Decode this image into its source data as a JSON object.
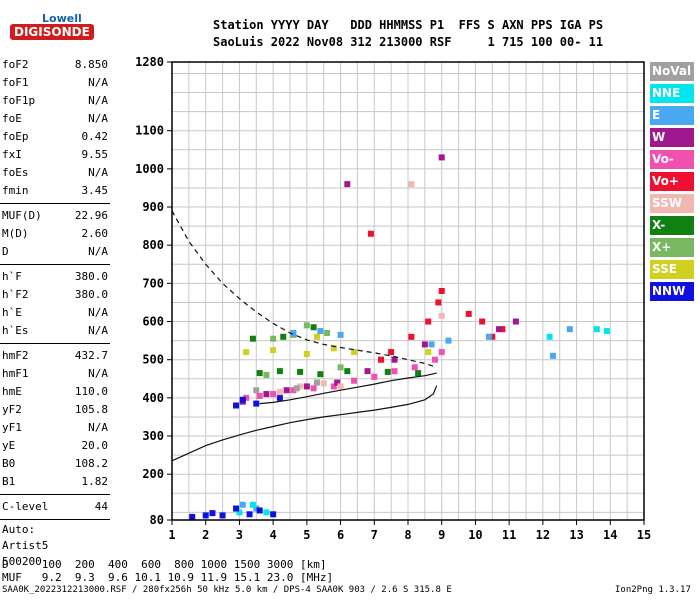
{
  "logo": {
    "top": "Lowell",
    "bottom": "DIGISONDE"
  },
  "header": {
    "line1": "Station YYYY DAY   DDD HHMMSS P1  FFS S AXN PPS IGA PS",
    "line2": "SaoLuis 2022 Nov08 312 213000 RSF     1 715 100 00- 11"
  },
  "params_a": [
    {
      "label": "foF2",
      "value": "8.850"
    },
    {
      "label": "foF1",
      "value": "N/A"
    },
    {
      "label": "foF1p",
      "value": "N/A"
    },
    {
      "label": "foE",
      "value": "N/A"
    },
    {
      "label": "foEp",
      "value": "0.42"
    },
    {
      "label": "fxI",
      "value": "9.55"
    },
    {
      "label": "foEs",
      "value": "N/A"
    },
    {
      "label": "fmin",
      "value": "3.45"
    }
  ],
  "params_b": [
    {
      "label": "MUF(D)",
      "value": "22.96"
    },
    {
      "label": "M(D)",
      "value": "2.60"
    },
    {
      "label": "D",
      "value": "N/A"
    }
  ],
  "params_c": [
    {
      "label": "h`F",
      "value": "380.0"
    },
    {
      "label": "h`F2",
      "value": "380.0"
    },
    {
      "label": "h`E",
      "value": "N/A"
    },
    {
      "label": "h`Es",
      "value": "N/A"
    }
  ],
  "params_d": [
    {
      "label": "hmF2",
      "value": "432.7"
    },
    {
      "label": "hmF1",
      "value": "N/A"
    },
    {
      "label": "hmE",
      "value": "110.0"
    },
    {
      "label": "yF2",
      "value": "105.8"
    },
    {
      "label": "yF1",
      "value": "N/A"
    },
    {
      "label": "yE",
      "value": "20.0"
    },
    {
      "label": "B0",
      "value": "108.2"
    },
    {
      "label": "B1",
      "value": "1.82"
    }
  ],
  "clevel": {
    "label": "C-level",
    "value": "44"
  },
  "auto": {
    "line1": "Auto:",
    "line2": "Artist5",
    "line3": "500200"
  },
  "legend": [
    {
      "label": "NoVal",
      "color": "#a0a0a0"
    },
    {
      "label": "NNE",
      "color": "#00e5ee"
    },
    {
      "label": "E",
      "color": "#4aa8f0"
    },
    {
      "label": "W",
      "color": "#a01890"
    },
    {
      "label": "Vo-",
      "color": "#f050b0"
    },
    {
      "label": "Vo+",
      "color": "#ee1030"
    },
    {
      "label": "SSW",
      "color": "#f0b8b0"
    },
    {
      "label": "X-",
      "color": "#108010"
    },
    {
      "label": "X+",
      "color": "#78b860"
    },
    {
      "label": "SSE",
      "color": "#d0d020"
    },
    {
      "label": "NNW",
      "color": "#1010e0"
    }
  ],
  "footer": {
    "d_row": "D     100  200  400  600  800 1000 1500 3000 [km]",
    "muf_row": "MUF   9.2  9.3  9.6 10.1 10.9 11.9 15.1 23.0 [MHz]",
    "file_line": "SAA0K_2022312213000.RSF / 280fx256h 50 kHz 5.0 km / DPS-4 SAA0K 903 / 2.6 S 315.8 E",
    "version": "Ion2Png 1.3.17"
  },
  "chart_data": {
    "type": "scatter",
    "title": "",
    "xlabel": "",
    "ylabel": "",
    "xlim": [
      1,
      15
    ],
    "ylim": [
      80,
      1280
    ],
    "x_ticks": [
      1,
      2,
      3,
      4,
      5,
      6,
      7,
      8,
      9,
      10,
      11,
      12,
      13,
      14,
      15
    ],
    "y_ticks": [
      80,
      200,
      300,
      400,
      500,
      600,
      700,
      800,
      900,
      1000,
      1100,
      1280
    ],
    "grid": true,
    "legend_position": "right",
    "series": [
      {
        "name": "X-",
        "points": [
          [
            3.6,
            465
          ],
          [
            4.2,
            470
          ],
          [
            4.8,
            468
          ],
          [
            5.4,
            462
          ],
          [
            6.2,
            470
          ],
          [
            7.4,
            468
          ],
          [
            8.3,
            465
          ],
          [
            3.4,
            555
          ],
          [
            4.3,
            560
          ],
          [
            5.2,
            585
          ]
        ]
      },
      {
        "name": "X+",
        "points": [
          [
            4.0,
            555
          ],
          [
            4.6,
            565
          ],
          [
            5.0,
            590
          ],
          [
            5.6,
            570
          ],
          [
            3.8,
            460
          ],
          [
            6.0,
            480
          ]
        ]
      },
      {
        "name": "SSE",
        "points": [
          [
            3.2,
            520
          ],
          [
            4.0,
            525
          ],
          [
            5.0,
            515
          ],
          [
            5.8,
            530
          ],
          [
            6.4,
            520
          ],
          [
            7.2,
            500
          ],
          [
            8.6,
            520
          ],
          [
            5.3,
            560
          ]
        ]
      },
      {
        "name": "Vo-",
        "points": [
          [
            3.2,
            400
          ],
          [
            3.6,
            405
          ],
          [
            4.0,
            410
          ],
          [
            4.6,
            420
          ],
          [
            5.2,
            425
          ],
          [
            5.8,
            430
          ],
          [
            6.4,
            445
          ],
          [
            7.0,
            455
          ],
          [
            7.6,
            470
          ],
          [
            8.2,
            480
          ],
          [
            8.8,
            500
          ],
          [
            9.0,
            520
          ]
        ]
      },
      {
        "name": "Vo+",
        "points": [
          [
            7.2,
            500
          ],
          [
            7.5,
            520
          ],
          [
            8.1,
            560
          ],
          [
            8.6,
            600
          ],
          [
            8.9,
            650
          ],
          [
            9.0,
            680
          ],
          [
            9.8,
            620
          ],
          [
            10.2,
            600
          ],
          [
            10.5,
            560
          ],
          [
            10.8,
            580
          ],
          [
            6.9,
            830
          ]
        ]
      },
      {
        "name": "W",
        "points": [
          [
            3.1,
            390
          ],
          [
            3.8,
            410
          ],
          [
            4.4,
            420
          ],
          [
            5.0,
            430
          ],
          [
            5.9,
            440
          ],
          [
            6.8,
            470
          ],
          [
            7.6,
            500
          ],
          [
            8.5,
            540
          ],
          [
            9.0,
            1030
          ],
          [
            10.7,
            580
          ],
          [
            11.2,
            600
          ],
          [
            6.2,
            960
          ]
        ]
      },
      {
        "name": "E",
        "points": [
          [
            3.1,
            120
          ],
          [
            3.5,
            110
          ],
          [
            4.6,
            570
          ],
          [
            5.4,
            575
          ],
          [
            6.0,
            565
          ],
          [
            8.7,
            540
          ],
          [
            9.2,
            550
          ],
          [
            10.4,
            560
          ],
          [
            12.3,
            510
          ],
          [
            12.8,
            580
          ]
        ]
      },
      {
        "name": "NNE",
        "points": [
          [
            3.0,
            100
          ],
          [
            3.4,
            120
          ],
          [
            3.8,
            100
          ],
          [
            12.2,
            560
          ],
          [
            13.6,
            580
          ],
          [
            13.9,
            575
          ]
        ]
      },
      {
        "name": "NNW",
        "points": [
          [
            1.6,
            88
          ],
          [
            2.0,
            92
          ],
          [
            2.2,
            98
          ],
          [
            2.5,
            92
          ],
          [
            2.9,
            110
          ],
          [
            3.3,
            95
          ],
          [
            3.6,
            105
          ],
          [
            4.0,
            95
          ],
          [
            2.9,
            380
          ],
          [
            3.1,
            395
          ],
          [
            3.5,
            385
          ],
          [
            4.2,
            400
          ]
        ]
      },
      {
        "name": "SSW",
        "points": [
          [
            4.2,
            415
          ],
          [
            4.8,
            430
          ],
          [
            5.5,
            438
          ],
          [
            6.0,
            430
          ],
          [
            8.1,
            960
          ],
          [
            9.0,
            615
          ]
        ]
      },
      {
        "name": "NoVal",
        "points": [
          [
            3.5,
            420
          ],
          [
            4.7,
            425
          ],
          [
            5.3,
            440
          ]
        ]
      }
    ],
    "reference_curves": [
      {
        "style": "dashed",
        "points": [
          [
            1,
            890
          ],
          [
            1.5,
            810
          ],
          [
            2,
            750
          ],
          [
            2.5,
            700
          ],
          [
            3,
            660
          ],
          [
            3.5,
            625
          ],
          [
            4,
            595
          ],
          [
            4.5,
            570
          ],
          [
            5,
            552
          ],
          [
            5.5,
            540
          ],
          [
            6,
            532
          ],
          [
            6.5,
            525
          ],
          [
            7,
            518
          ],
          [
            7.5,
            510
          ],
          [
            8,
            500
          ],
          [
            8.5,
            490
          ],
          [
            8.85,
            480
          ]
        ]
      },
      {
        "style": "solid",
        "points": [
          [
            1,
            235
          ],
          [
            1.5,
            255
          ],
          [
            2,
            275
          ],
          [
            2.5,
            290
          ],
          [
            3,
            303
          ],
          [
            3.5,
            315
          ],
          [
            4,
            325
          ],
          [
            4.5,
            335
          ],
          [
            5,
            343
          ],
          [
            5.5,
            350
          ],
          [
            6,
            356
          ],
          [
            6.5,
            362
          ],
          [
            7,
            368
          ],
          [
            7.5,
            375
          ],
          [
            8,
            383
          ],
          [
            8.5,
            395
          ],
          [
            8.75,
            410
          ],
          [
            8.85,
            432
          ]
        ]
      },
      {
        "style": "solid",
        "points": [
          [
            3.6,
            385
          ],
          [
            4,
            388
          ],
          [
            4.5,
            395
          ],
          [
            5,
            403
          ],
          [
            5.5,
            412
          ],
          [
            6,
            420
          ],
          [
            6.5,
            428
          ],
          [
            7,
            436
          ],
          [
            7.5,
            445
          ],
          [
            8,
            452
          ],
          [
            8.5,
            458
          ],
          [
            8.85,
            465
          ]
        ]
      }
    ]
  }
}
